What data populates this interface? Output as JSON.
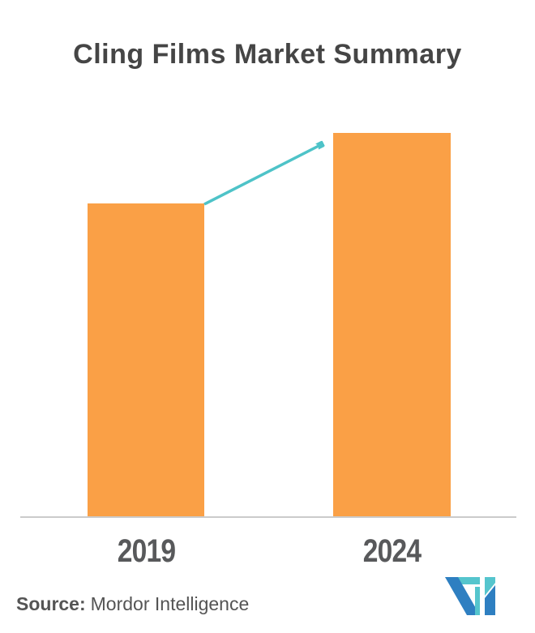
{
  "title": "Cling Films Market Summary",
  "source": {
    "label": "Source:",
    "text": "Mordor Intelligence"
  },
  "logo": {
    "name": "mordor-intelligence-logo"
  },
  "colors": {
    "bar": "#FAA046",
    "arrow": "#4EC3C8",
    "axis": "#CBCBCB",
    "title_text": "#454545",
    "label_text": "#58595B",
    "source_text": "#545454",
    "background": "#FFFFFF",
    "logo_teal": "#55C5CD",
    "logo_blue": "#2E7FC1"
  },
  "chart_data": {
    "type": "bar",
    "title": "Cling Films Market Summary",
    "categories": [
      "2019",
      "2024"
    ],
    "values_relative": [
      0.816,
      1.0
    ],
    "value_labels_shown": false,
    "xlabel": "",
    "ylabel": "",
    "y_axis_shown": false,
    "grid": false,
    "legend": false,
    "annotations": [
      "upward growth arrow from top of 2019 bar to top of 2024 bar"
    ]
  }
}
